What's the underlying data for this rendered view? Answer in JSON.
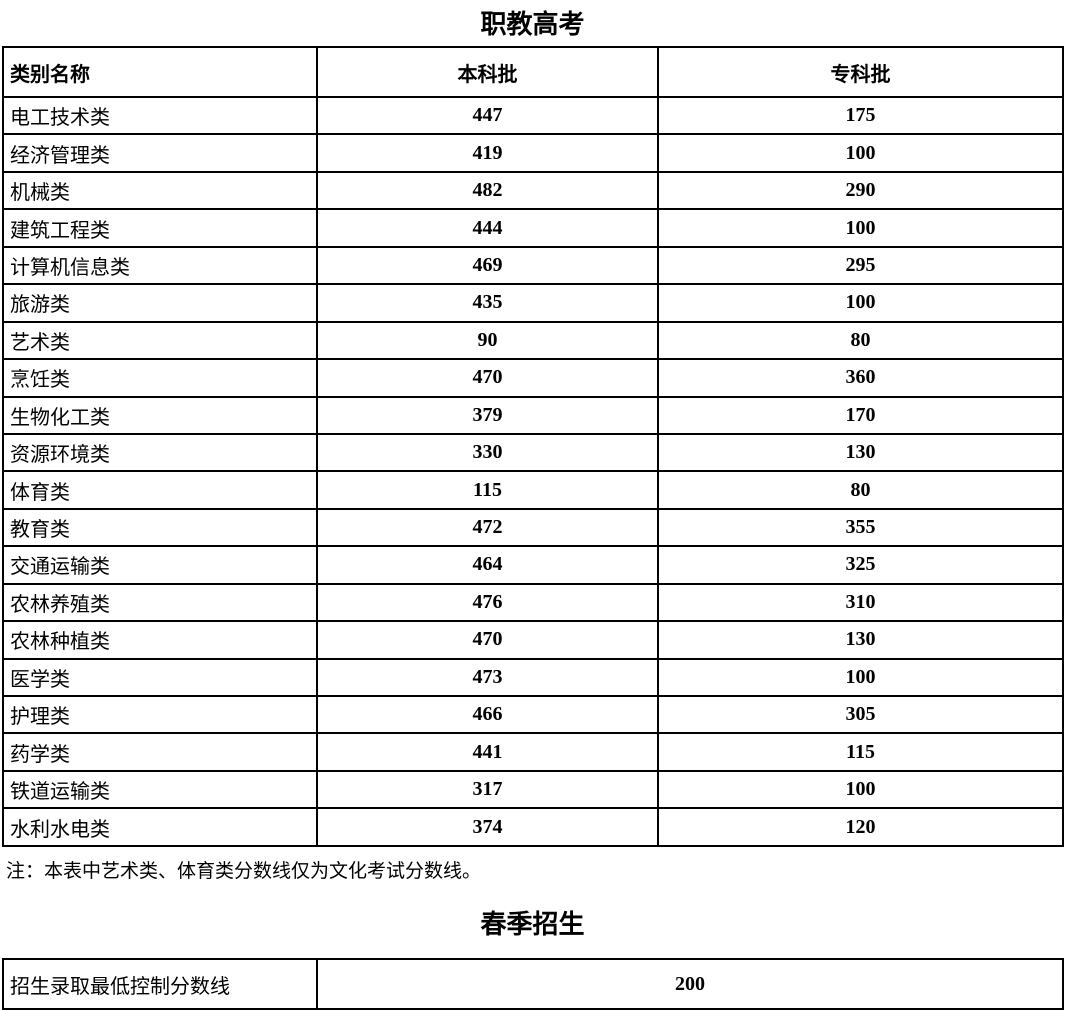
{
  "title1": "职教高考",
  "table1": {
    "headers": [
      "类别名称",
      "本科批",
      "专科批"
    ],
    "rows": [
      [
        "电工技术类",
        "447",
        "175"
      ],
      [
        "经济管理类",
        "419",
        "100"
      ],
      [
        "机械类",
        "482",
        "290"
      ],
      [
        "建筑工程类",
        "444",
        "100"
      ],
      [
        "计算机信息类",
        "469",
        "295"
      ],
      [
        "旅游类",
        "435",
        "100"
      ],
      [
        "艺术类",
        "90",
        "80"
      ],
      [
        "烹饪类",
        "470",
        "360"
      ],
      [
        "生物化工类",
        "379",
        "170"
      ],
      [
        "资源环境类",
        "330",
        "130"
      ],
      [
        "体育类",
        "115",
        "80"
      ],
      [
        "教育类",
        "472",
        "355"
      ],
      [
        "交通运输类",
        "464",
        "325"
      ],
      [
        "农林养殖类",
        "476",
        "310"
      ],
      [
        "农林种植类",
        "470",
        "130"
      ],
      [
        "医学类",
        "473",
        "100"
      ],
      [
        "护理类",
        "466",
        "305"
      ],
      [
        "药学类",
        "441",
        "115"
      ],
      [
        "铁道运输类",
        "317",
        "100"
      ],
      [
        "水利水电类",
        "374",
        "120"
      ]
    ]
  },
  "note": "注：本表中艺术类、体育类分数线仅为文化考试分数线。",
  "title2": "春季招生",
  "table2": {
    "label": "招生录取最低控制分数线",
    "value": "200"
  }
}
